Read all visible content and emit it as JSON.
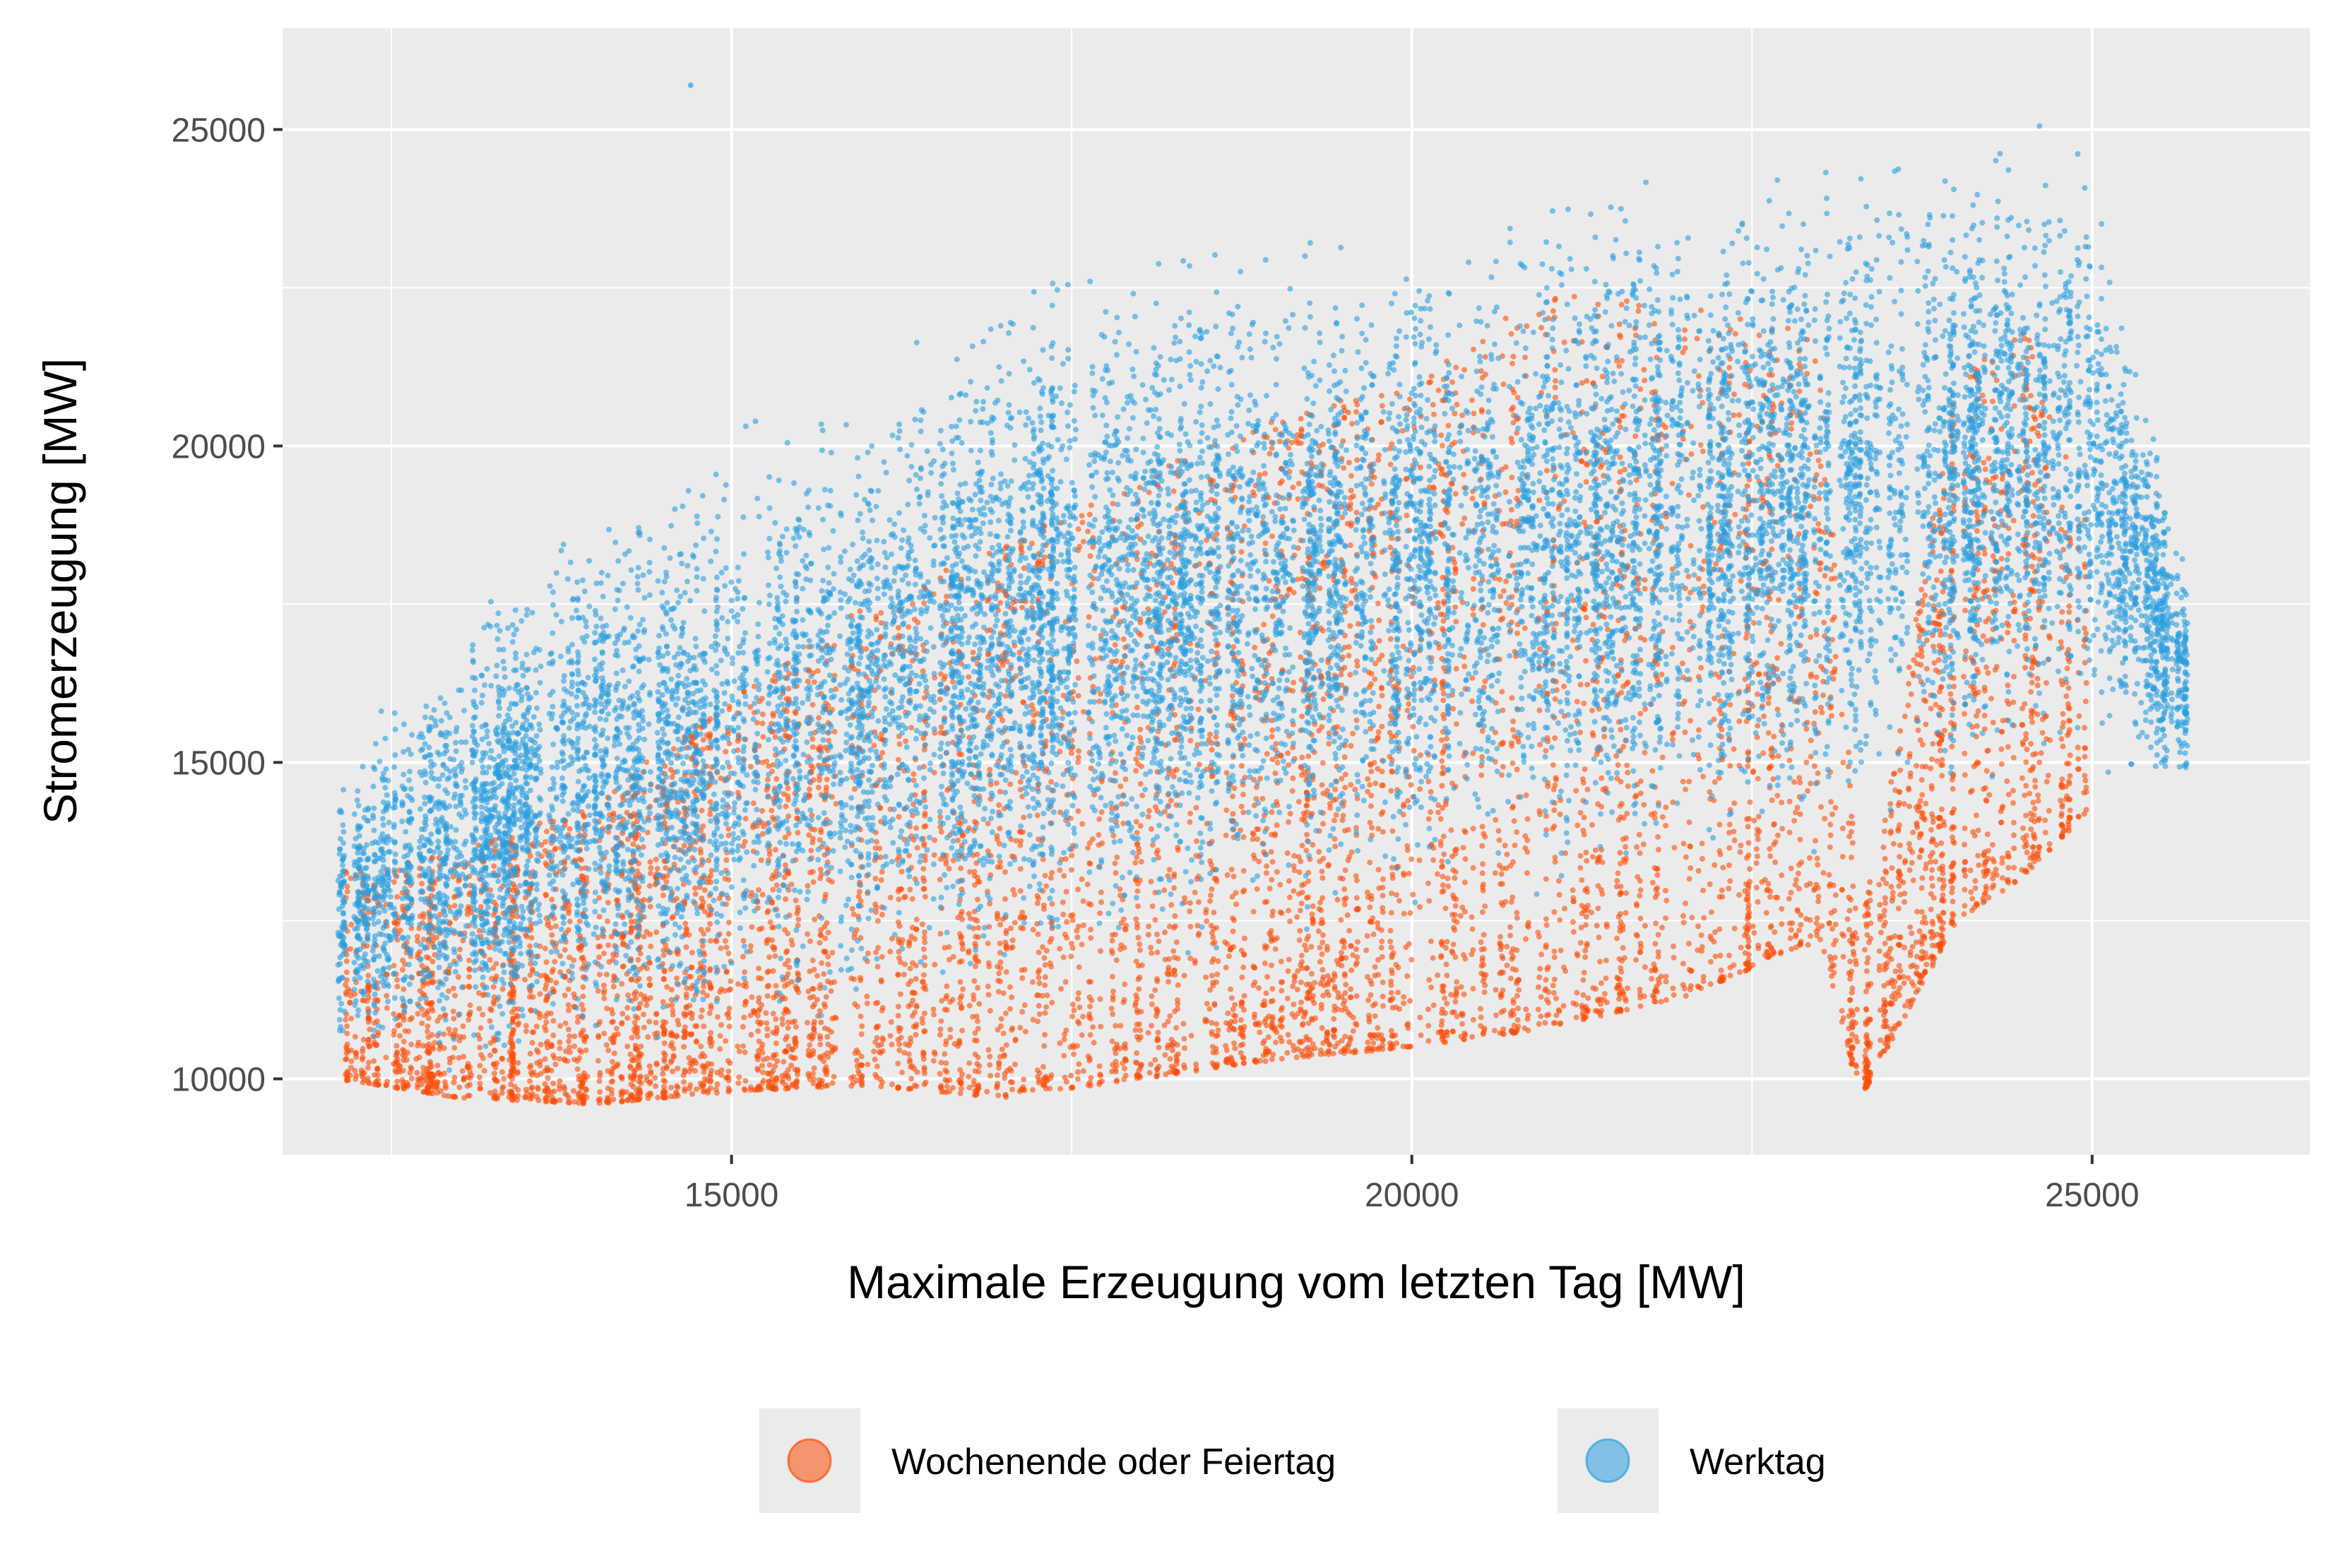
{
  "chart_data": {
    "type": "scatter",
    "title": "",
    "xlabel": "Maximale Erzeugung vom letzten Tag [MW]",
    "ylabel": "Stromerzeugung [MW]",
    "xlim": [
      11700,
      26600
    ],
    "ylim": [
      8800,
      26600
    ],
    "x_ticks": [
      15000,
      20000,
      25000
    ],
    "y_ticks": [
      10000,
      15000,
      20000,
      25000
    ],
    "x_tick_labels": [
      "15000",
      "20000",
      "25000"
    ],
    "y_tick_labels": [
      "10000",
      "15000",
      "20000",
      "25000"
    ],
    "grid": true,
    "legend_position": "bottom",
    "panel_background": "#ebebeb",
    "series": [
      {
        "name": "Wochenende oder Feiertag",
        "color": "#fc4e0a",
        "envelope": [
          {
            "x": 12100,
            "low": 10000,
            "high": 13300
          },
          {
            "x": 13000,
            "low": 9700,
            "high": 13600
          },
          {
            "x": 14000,
            "low": 9600,
            "high": 14400
          },
          {
            "x": 15000,
            "low": 9800,
            "high": 16000
          },
          {
            "x": 16000,
            "low": 9900,
            "high": 17500
          },
          {
            "x": 17000,
            "low": 9700,
            "high": 18500
          },
          {
            "x": 18000,
            "low": 10000,
            "high": 19500
          },
          {
            "x": 19000,
            "low": 10300,
            "high": 20500
          },
          {
            "x": 20000,
            "low": 10500,
            "high": 21000
          },
          {
            "x": 21000,
            "low": 10800,
            "high": 22500
          },
          {
            "x": 22000,
            "low": 11300,
            "high": 22200
          },
          {
            "x": 23000,
            "low": 12200,
            "high": 21800
          },
          {
            "x": 23300,
            "low": 9700,
            "high": 12300
          },
          {
            "x": 24000,
            "low": 12500,
            "high": 21000
          },
          {
            "x": 24500,
            "low": 13200,
            "high": 22000
          },
          {
            "x": 25000,
            "low": 14300,
            "high": 18600
          }
        ]
      },
      {
        "name": "Werktag",
        "color": "#2c9fe0",
        "envelope": [
          {
            "x": 12100,
            "low": 10300,
            "high": 15000
          },
          {
            "x": 13000,
            "low": 9900,
            "high": 17500
          },
          {
            "x": 14000,
            "low": 10100,
            "high": 19500
          },
          {
            "x": 15000,
            "low": 10200,
            "high": 20500
          },
          {
            "x": 16000,
            "low": 10500,
            "high": 21600
          },
          {
            "x": 17000,
            "low": 11200,
            "high": 23000
          },
          {
            "x": 18000,
            "low": 11500,
            "high": 23500
          },
          {
            "x": 19000,
            "low": 11800,
            "high": 23800
          },
          {
            "x": 20000,
            "low": 12000,
            "high": 24000
          },
          {
            "x": 21000,
            "low": 12500,
            "high": 24300
          },
          {
            "x": 22000,
            "low": 13000,
            "high": 24600
          },
          {
            "x": 23000,
            "low": 13500,
            "high": 24800
          },
          {
            "x": 24000,
            "low": 14000,
            "high": 25200
          },
          {
            "x": 25000,
            "low": 14500,
            "high": 25100
          },
          {
            "x": 25700,
            "low": 14200,
            "high": 18300
          }
        ],
        "points": [
          {
            "x": 14700,
            "y": 25700
          }
        ]
      }
    ]
  }
}
